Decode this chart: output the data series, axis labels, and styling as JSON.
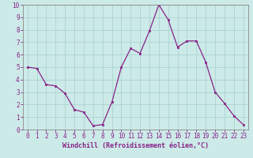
{
  "x": [
    0,
    1,
    2,
    3,
    4,
    5,
    6,
    7,
    8,
    9,
    10,
    11,
    12,
    13,
    14,
    15,
    16,
    17,
    18,
    19,
    20,
    21,
    22,
    23
  ],
  "y": [
    5.0,
    4.9,
    3.6,
    3.5,
    2.9,
    1.6,
    1.4,
    0.3,
    0.4,
    2.2,
    5.0,
    6.5,
    6.1,
    7.9,
    10.0,
    8.8,
    6.6,
    7.1,
    7.1,
    5.4,
    3.0,
    2.1,
    1.1,
    0.4
  ],
  "line_color": "#882288",
  "marker_color": "#882288",
  "bg_color": "#cceae8",
  "grid_color": "#aad4d2",
  "xlabel": "Windchill (Refroidissement éolien,°C)",
  "ylim": [
    0,
    10
  ],
  "xlim": [
    -0.5,
    23.5
  ],
  "yticks": [
    0,
    1,
    2,
    3,
    4,
    5,
    6,
    7,
    8,
    9,
    10
  ],
  "xticks": [
    0,
    1,
    2,
    3,
    4,
    5,
    6,
    7,
    8,
    9,
    10,
    11,
    12,
    13,
    14,
    15,
    16,
    17,
    18,
    19,
    20,
    21,
    22,
    23
  ],
  "label_color": "#882288",
  "spine_color": "#888888",
  "tick_labelsize": 5.5,
  "xlabel_fontsize": 6.0
}
